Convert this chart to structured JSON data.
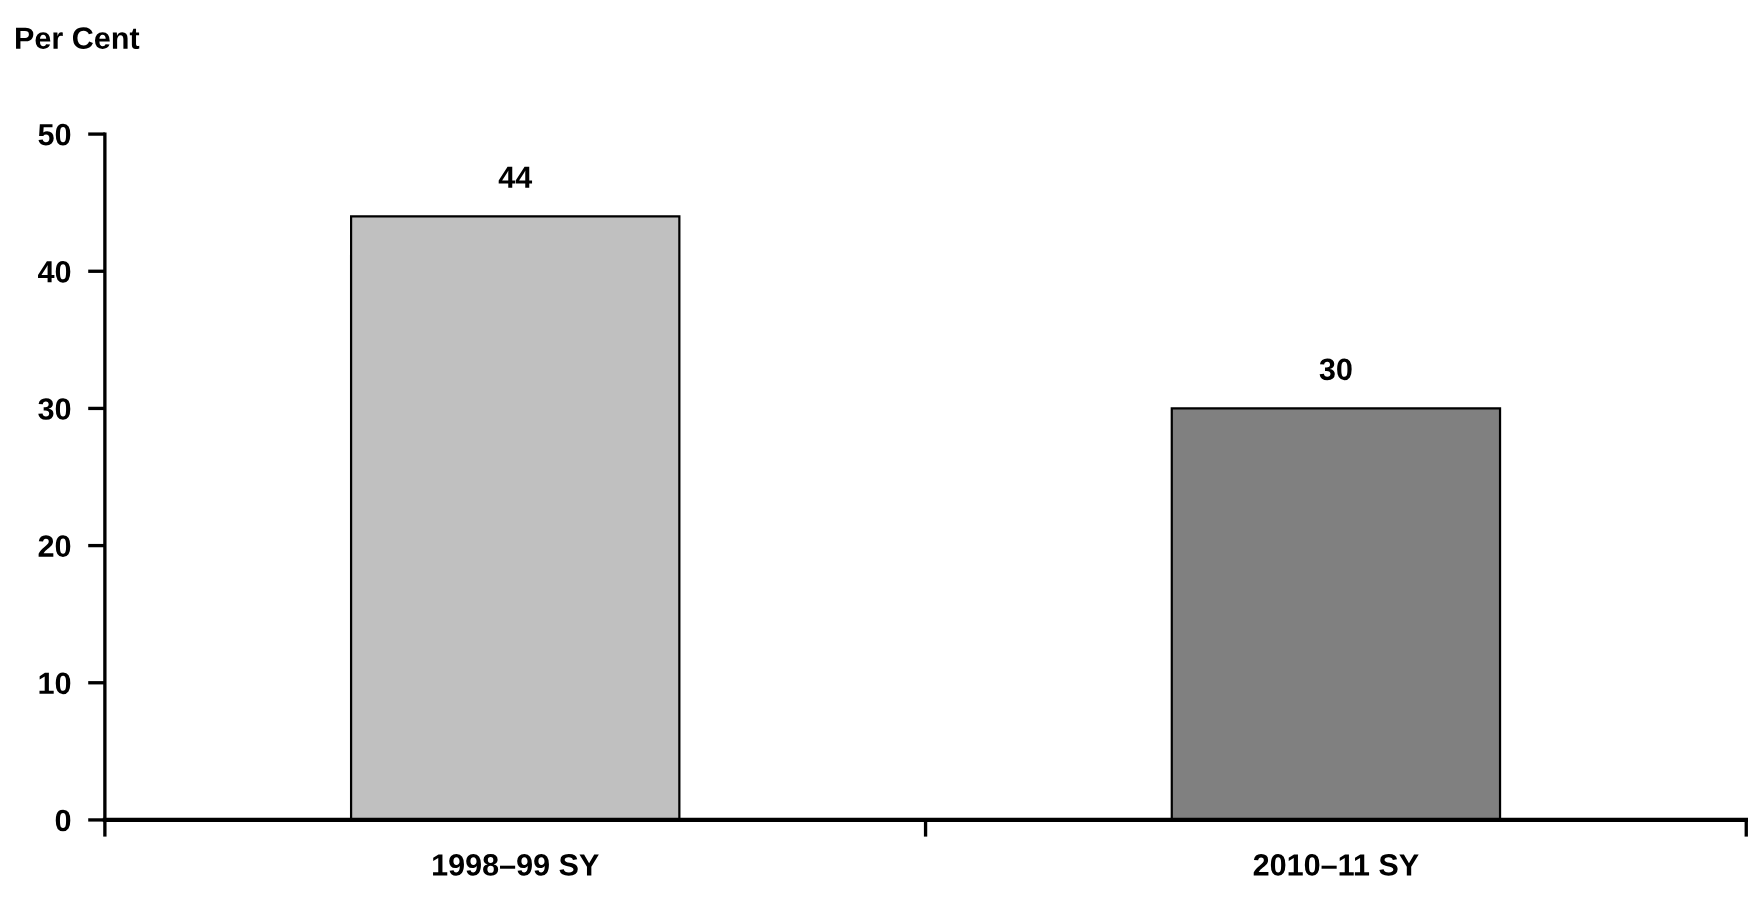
{
  "chart_data": {
    "type": "bar",
    "ylabel": "Per Cent",
    "categories": [
      "1998–99 SY",
      "2010–11 SY"
    ],
    "values": [
      44,
      30
    ],
    "colors": [
      "#c0c0c0",
      "#808080"
    ],
    "ylim": [
      0,
      50
    ],
    "yticks": [
      0,
      10,
      20,
      30,
      40,
      50
    ],
    "data_labels": true,
    "grid": false,
    "legend": false
  }
}
